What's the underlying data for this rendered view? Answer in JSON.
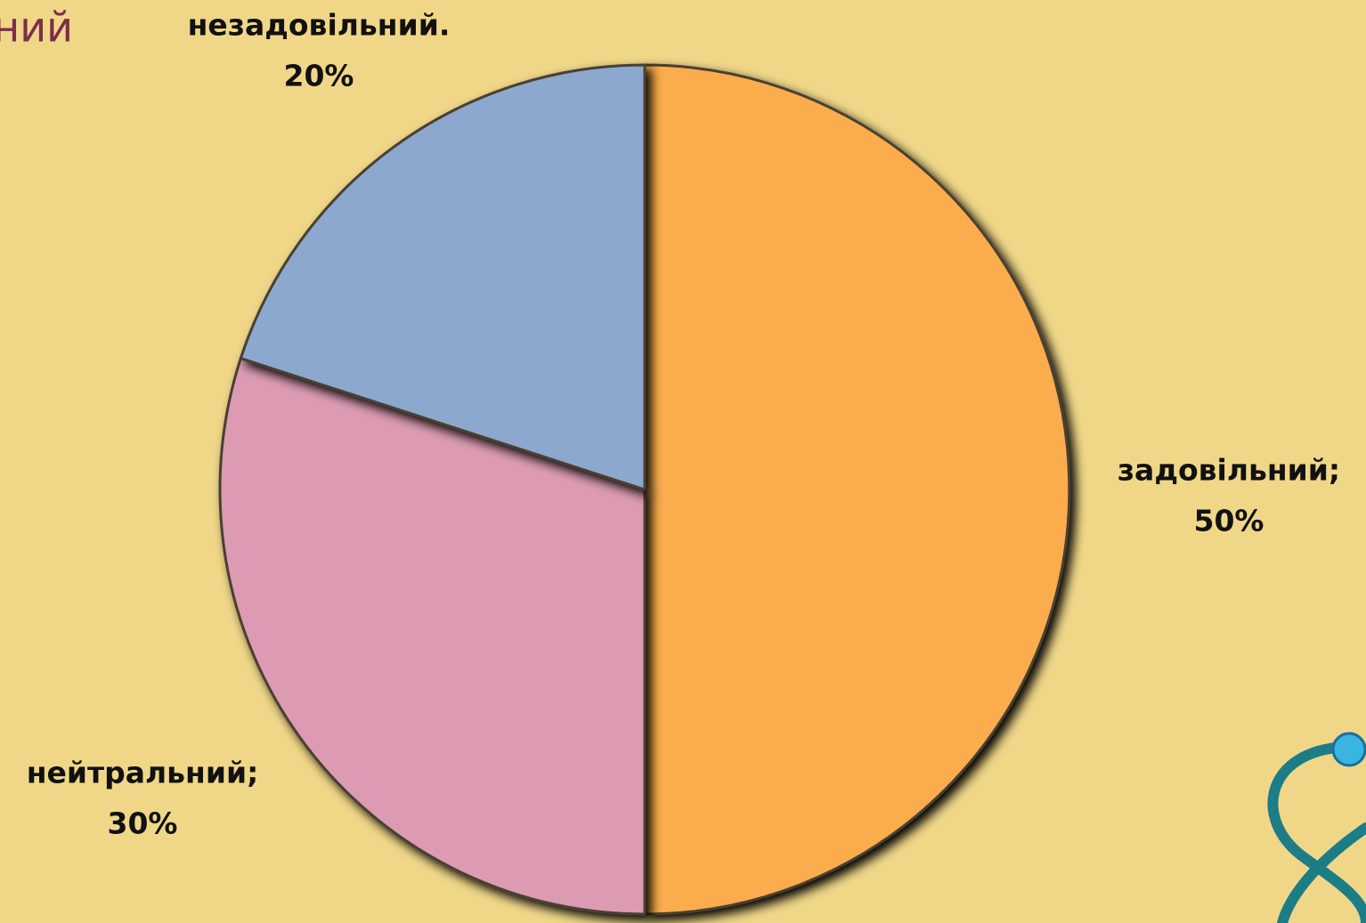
{
  "chart_data": {
    "type": "pie",
    "title": "ний",
    "categories": [
      "задовільний;",
      "нейтральний;",
      "незадовільний."
    ],
    "values": [
      50,
      30,
      20
    ],
    "value_labels": [
      "50%",
      "30%",
      "20%"
    ],
    "colors": [
      "#fbac4e",
      "#dc9bb2",
      "#8ca8cf"
    ]
  }
}
